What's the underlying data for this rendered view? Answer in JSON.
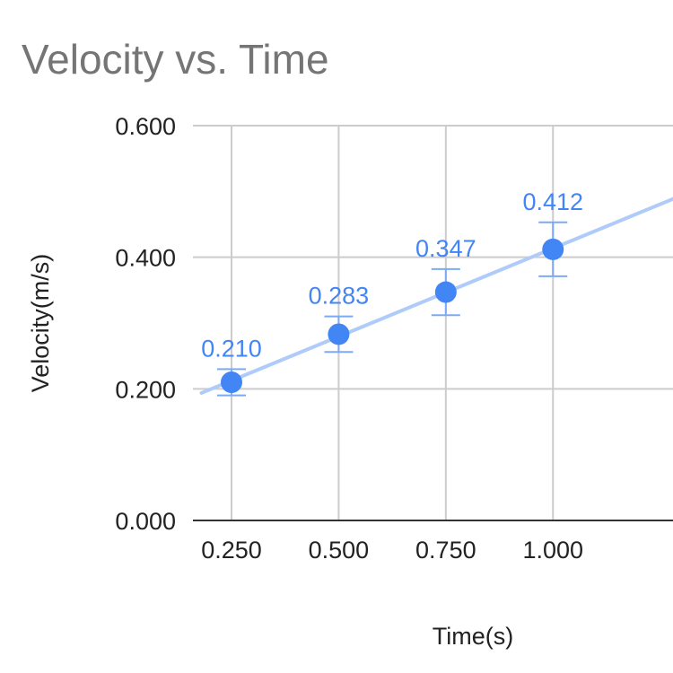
{
  "chart_data": {
    "type": "scatter",
    "title": "Velocity vs. Time",
    "xlabel": "Time(s)",
    "ylabel": "Velocity(m/s)",
    "x_ticks": [
      "0.250",
      "0.500",
      "0.750",
      "1.000"
    ],
    "y_ticks": [
      "0.000",
      "0.200",
      "0.400",
      "0.600"
    ],
    "xlim": [
      0.16,
      1.28
    ],
    "ylim": [
      0,
      0.6
    ],
    "grid": true,
    "trendline": "linear",
    "series": [
      {
        "x": [
          0.25,
          0.5,
          0.75,
          1.0
        ],
        "y": [
          0.21,
          0.283,
          0.347,
          0.412
        ],
        "labels": [
          "0.210",
          "0.283",
          "0.347",
          "0.412"
        ],
        "error": [
          0.02,
          0.027,
          0.035,
          0.041
        ]
      }
    ],
    "colors": {
      "point": "#4285f4",
      "trendline": "#aecbfa",
      "error_bar": "#7baaf7",
      "data_label": "#4285f4",
      "grid": "#cccccc",
      "axis": "#333333",
      "title": "#757575"
    }
  }
}
